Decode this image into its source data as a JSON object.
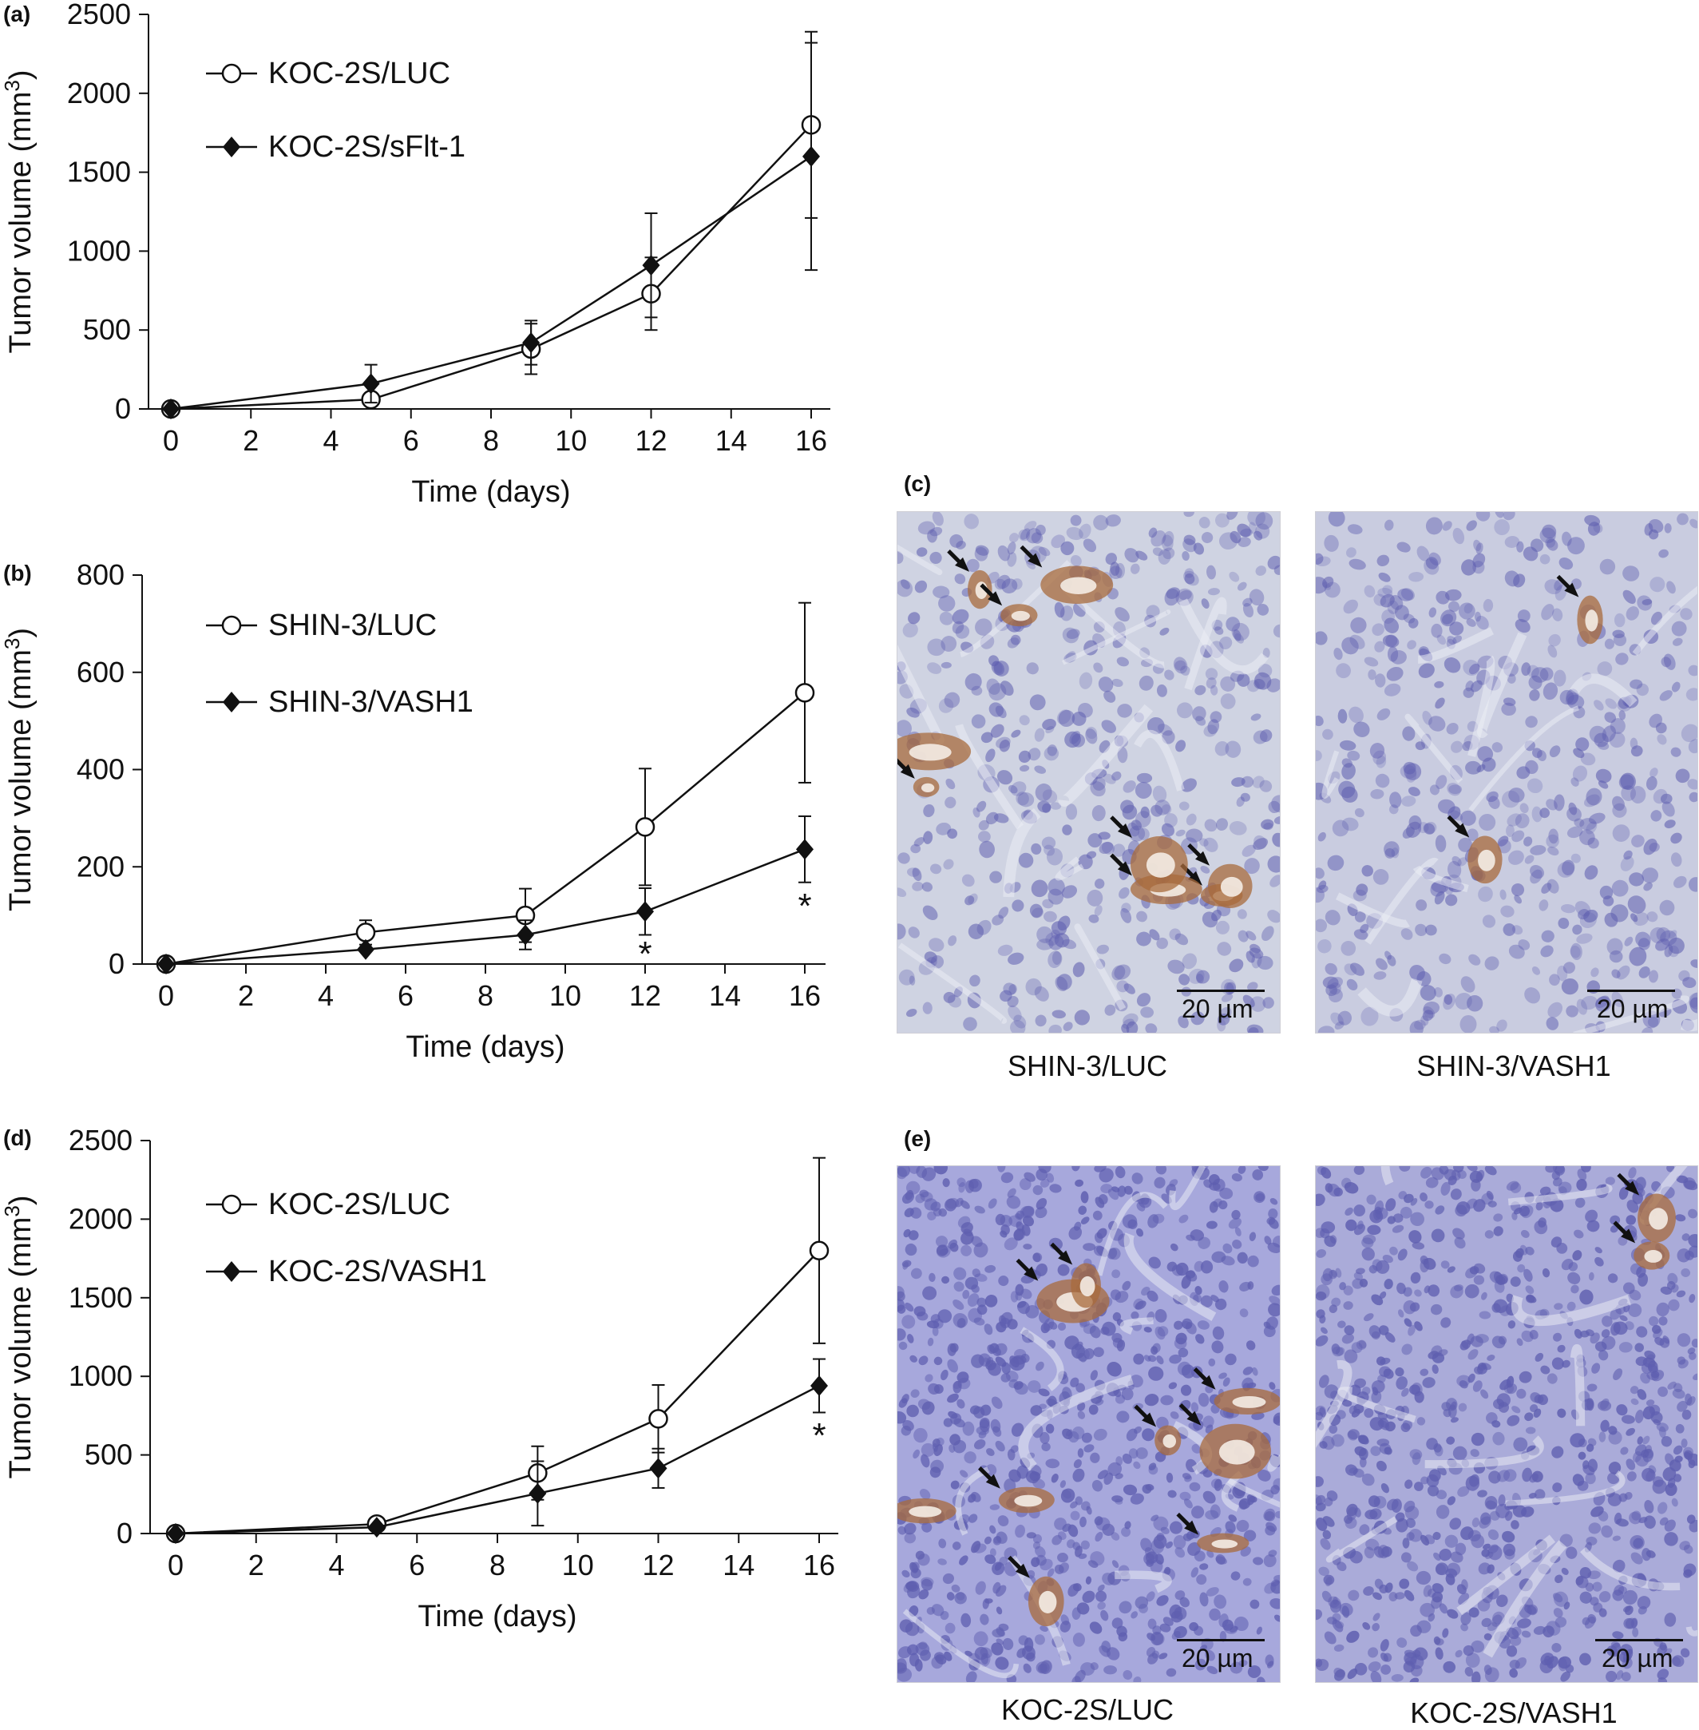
{
  "panels": {
    "a": {
      "label": "(a)"
    },
    "b": {
      "label": "(b)"
    },
    "c": {
      "label": "(c)"
    },
    "d": {
      "label": "(d)"
    },
    "e": {
      "label": "(e)"
    }
  },
  "chart_data": [
    {
      "id": "a",
      "type": "line",
      "xlabel": "Time (days)",
      "ylabel": "Tumor volume (mm",
      "ylabel_sup": "3",
      "ylabel_end": ")",
      "xlim": [
        0,
        16
      ],
      "ylim": [
        0,
        2500
      ],
      "xticks": [
        "0",
        "2",
        "4",
        "6",
        "8",
        "10",
        "12",
        "14",
        "16"
      ],
      "yticks": [
        "0",
        "500",
        "1000",
        "1500",
        "2000",
        "2500"
      ],
      "x": [
        0,
        5,
        9,
        12,
        16
      ],
      "legend": "top-left",
      "series": [
        {
          "name": "KOC-2S/LUC",
          "marker": "open-circle",
          "values": [
            0,
            60,
            380,
            730,
            1800
          ],
          "error": [
            0,
            0,
            160,
            230,
            590
          ]
        },
        {
          "name": "KOC-2S/sFlt-1",
          "marker": "filled-diamond",
          "values": [
            0,
            160,
            420,
            910,
            1600
          ],
          "error": [
            0,
            120,
            140,
            330,
            720
          ]
        }
      ],
      "annotations": []
    },
    {
      "id": "b",
      "type": "line",
      "xlabel": "Time (days)",
      "ylabel": "Tumor volume (mm",
      "ylabel_sup": "3",
      "ylabel_end": ")",
      "xlim": [
        0,
        16
      ],
      "ylim": [
        0,
        800
      ],
      "xticks": [
        "0",
        "2",
        "4",
        "6",
        "8",
        "10",
        "12",
        "14",
        "16"
      ],
      "yticks": [
        "0",
        "200",
        "400",
        "600",
        "800"
      ],
      "x": [
        0,
        5,
        9,
        12,
        16
      ],
      "legend": "top-left",
      "series": [
        {
          "name": "SHIN-3/LUC",
          "marker": "open-circle",
          "values": [
            0,
            65,
            100,
            282,
            558
          ],
          "error": [
            0,
            25,
            55,
            120,
            185
          ]
        },
        {
          "name": "SHIN-3/VASH1",
          "marker": "filled-diamond",
          "values": [
            0,
            30,
            60,
            108,
            236
          ],
          "error": [
            0,
            0,
            30,
            48,
            68
          ]
        }
      ],
      "annotations": [
        {
          "text": "*",
          "x": 12,
          "y": 20
        },
        {
          "text": "*",
          "x": 16,
          "y": 118
        }
      ]
    },
    {
      "id": "d",
      "type": "line",
      "xlabel": "Time (days)",
      "ylabel": "Tumor volume (mm",
      "ylabel_sup": "3",
      "ylabel_end": ")",
      "xlim": [
        0,
        16
      ],
      "ylim": [
        0,
        2500
      ],
      "xticks": [
        "0",
        "2",
        "4",
        "6",
        "8",
        "10",
        "12",
        "14",
        "16"
      ],
      "yticks": [
        "0",
        "500",
        "1000",
        "1500",
        "2000",
        "2500"
      ],
      "x": [
        0,
        5,
        9,
        12,
        16
      ],
      "legend": "top-left",
      "series": [
        {
          "name": "KOC-2S/LUC",
          "marker": "open-circle",
          "values": [
            0,
            60,
            385,
            730,
            1800
          ],
          "error": [
            0,
            0,
            170,
            215,
            590
          ]
        },
        {
          "name": "KOC-2S/VASH1",
          "marker": "filled-diamond",
          "values": [
            0,
            40,
            255,
            415,
            940
          ],
          "error": [
            0,
            0,
            205,
            125,
            170
          ]
        }
      ],
      "annotations": [
        {
          "text": "*",
          "x": 16,
          "y": 620
        }
      ]
    }
  ],
  "micrographs": [
    {
      "id": "c-left",
      "caption": "SHIN-3/LUC",
      "scalebar": "20 µm",
      "stain": "high",
      "base": "#cfd3e2"
    },
    {
      "id": "c-right",
      "caption": "SHIN-3/VASH1",
      "scalebar": "20 µm",
      "stain": "low",
      "base": "#c9cce0"
    },
    {
      "id": "e-left",
      "caption": "KOC-2S/LUC",
      "scalebar": "20 µm",
      "stain": "high",
      "base": "#a7a8dc"
    },
    {
      "id": "e-right",
      "caption": "KOC-2S/VASH1",
      "scalebar": "20 µm",
      "stain": "low",
      "base": "#aaabd9"
    }
  ],
  "colors": {
    "stain_brown": "#a86b3c",
    "nuclei": "#5f5fb0",
    "line": "#111111"
  }
}
